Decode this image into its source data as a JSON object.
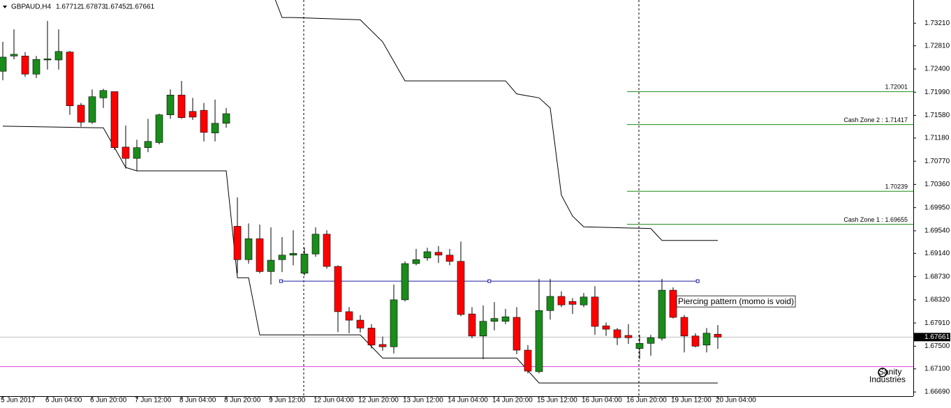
{
  "chart_data": {
    "type": "candlestick",
    "title": "GBPAUD,H4",
    "up_color": "#1a8c1a",
    "down_color": "#ff0000",
    "ylim": [
      1.66617,
      1.7362
    ],
    "yticks": [
      {
        "value": 1.7321,
        "label": "1.73210"
      },
      {
        "value": 1.7281,
        "label": "1.72810"
      },
      {
        "value": 1.724,
        "label": "1.72400"
      },
      {
        "value": 1.7199,
        "label": "1.71990"
      },
      {
        "value": 1.7158,
        "label": "1.71580"
      },
      {
        "value": 1.7118,
        "label": "1.71180"
      },
      {
        "value": 1.7077,
        "label": "1.70770"
      },
      {
        "value": 1.7036,
        "label": "1.70360"
      },
      {
        "value": 1.6995,
        "label": "1.69950"
      },
      {
        "value": 1.6954,
        "label": "1.69540"
      },
      {
        "value": 1.6914,
        "label": "1.69140"
      },
      {
        "value": 1.6873,
        "label": "1.68730"
      },
      {
        "value": 1.6832,
        "label": "1.68320"
      },
      {
        "value": 1.6791,
        "label": "1.67910"
      },
      {
        "value": 1.675,
        "label": "1.67500"
      },
      {
        "value": 1.671,
        "label": "1.67100"
      },
      {
        "value": 1.6669,
        "label": "1.66690"
      }
    ],
    "xticks": [
      {
        "value": 0,
        "label": "5 Jun 2017"
      },
      {
        "value": 4,
        "label": "6 Jun 04:00"
      },
      {
        "value": 8,
        "label": "6 Jun 20:00"
      },
      {
        "value": 12,
        "label": "7 Jun 12:00"
      },
      {
        "value": 16,
        "label": "8 Jun 04:00"
      },
      {
        "value": 20,
        "label": "8 Jun 20:00"
      },
      {
        "value": 24,
        "label": "9 Jun 12:00"
      },
      {
        "value": 28,
        "label": "12 Jun 04:00"
      },
      {
        "value": 32,
        "label": "12 Jun 20:00"
      },
      {
        "value": 36,
        "label": "13 Jun 12:00"
      },
      {
        "value": 40,
        "label": "14 Jun 04:00"
      },
      {
        "value": 44,
        "label": "14 Jun 20:00"
      },
      {
        "value": 48,
        "label": "15 Jun 12:00"
      },
      {
        "value": 52,
        "label": "16 Jun 04:00"
      },
      {
        "value": 56,
        "label": "16 Jun 20:00"
      },
      {
        "value": 60,
        "label": "19 Jun 12:00"
      },
      {
        "value": 64,
        "label": "20 Jun 04:00"
      }
    ],
    "open": [
      1.7236,
      1.7263,
      1.7263,
      1.7231,
      1.7256,
      1.7256,
      1.727,
      1.7176,
      1.7146,
      1.7189,
      1.72,
      1.7102,
      1.7082,
      1.7101,
      1.711,
      1.7159,
      1.7194,
      1.7165,
      1.7167,
      1.7127,
      1.7144,
      1.6962,
      1.6903,
      1.694,
      1.6882,
      1.6903,
      1.6911,
      1.6879,
      1.6913,
      1.6948,
      1.6891,
      1.6811,
      1.6796,
      1.6782,
      1.6753,
      1.6749,
      1.6832,
      1.6896,
      1.6906,
      1.6916,
      1.6911,
      1.69,
      1.6807,
      1.6768,
      1.6794,
      1.6794,
      1.6801,
      1.6743,
      1.6705,
      1.6813,
      1.6838,
      1.6829,
      1.6823,
      1.6837,
      1.6786,
      1.6779,
      1.6769,
      1.6746,
      1.6755,
      1.6764,
      1.6849,
      1.6801,
      1.6768,
      1.6752,
      1.67712
    ],
    "high": [
      1.7288,
      1.731,
      1.727,
      1.7263,
      1.7325,
      1.731,
      1.7272,
      1.718,
      1.7204,
      1.7205,
      1.72,
      1.714,
      1.7115,
      1.7152,
      1.7161,
      1.7204,
      1.7219,
      1.7189,
      1.718,
      1.7186,
      1.7171,
      1.7013,
      1.6967,
      1.6965,
      1.696,
      1.6943,
      1.6955,
      1.6924,
      1.696,
      1.6955,
      1.6893,
      1.6819,
      1.6805,
      1.6789,
      1.6767,
      1.6859,
      1.69,
      1.6922,
      1.6924,
      1.6927,
      1.6922,
      1.6935,
      1.6819,
      1.6822,
      1.6828,
      1.6816,
      1.6819,
      1.6752,
      1.6869,
      1.6869,
      1.6847,
      1.6835,
      1.6844,
      1.6856,
      1.6792,
      1.6782,
      1.6789,
      1.677,
      1.677,
      1.6869,
      1.6854,
      1.6805,
      1.6773,
      1.6782,
      1.67873
    ],
    "low": [
      1.722,
      1.7257,
      1.7226,
      1.7224,
      1.7239,
      1.7239,
      1.7159,
      1.7138,
      1.7143,
      1.7171,
      1.7097,
      1.7064,
      1.706,
      1.7093,
      1.7107,
      1.7152,
      1.7152,
      1.715,
      1.7112,
      1.7112,
      1.7136,
      1.6879,
      1.6896,
      1.6879,
      1.6859,
      1.6881,
      1.6893,
      1.6875,
      1.6908,
      1.6887,
      1.6775,
      1.6773,
      1.6774,
      1.6746,
      1.6742,
      1.6737,
      1.6829,
      1.6893,
      1.6901,
      1.6897,
      1.6893,
      1.6803,
      1.6764,
      1.6727,
      1.6778,
      1.6789,
      1.6736,
      1.6702,
      1.6702,
      1.6797,
      1.6819,
      1.6807,
      1.6819,
      1.677,
      1.6768,
      1.6752,
      1.6754,
      1.6727,
      1.6733,
      1.676,
      1.6799,
      1.6739,
      1.6748,
      1.6739,
      1.67452
    ],
    "close": [
      1.7261,
      1.7266,
      1.7231,
      1.7257,
      1.7258,
      1.7271,
      1.7175,
      1.7146,
      1.7191,
      1.7202,
      1.7101,
      1.7082,
      1.7101,
      1.7112,
      1.7159,
      1.7194,
      1.7154,
      1.7155,
      1.7128,
      1.7144,
      1.7161,
      1.6903,
      1.694,
      1.6882,
      1.6902,
      1.6911,
      1.6914,
      1.6913,
      1.6948,
      1.6891,
      1.6811,
      1.6796,
      1.6782,
      1.6752,
      1.6749,
      1.6832,
      1.6896,
      1.6903,
      1.6917,
      1.6911,
      1.69,
      1.6806,
      1.6768,
      1.6794,
      1.6799,
      1.6802,
      1.6743,
      1.6706,
      1.6813,
      1.6838,
      1.6823,
      1.6824,
      1.6837,
      1.6785,
      1.678,
      1.6765,
      1.6765,
      1.6755,
      1.6765,
      1.6849,
      1.6801,
      1.6768,
      1.675,
      1.6773,
      1.67661
    ],
    "lines": [
      {
        "color": "#000000",
        "x": [
          0,
          9,
          11,
          12,
          20,
          21,
          22,
          23,
          32,
          34,
          46,
          48,
          64
        ],
        "values": [
          1.7139,
          1.7136,
          1.7066,
          1.706,
          1.706,
          1.6871,
          1.6871,
          1.677,
          1.677,
          1.6729,
          1.6729,
          1.6685,
          1.6685
        ]
      },
      {
        "color": "#000000",
        "x": [
          24.4,
          25,
          26,
          32,
          34,
          36,
          45,
          46,
          48,
          49,
          50,
          51,
          52,
          58,
          59,
          64
        ],
        "values": [
          1.7362,
          1.7331,
          1.7331,
          1.7327,
          1.7288,
          1.7219,
          1.7219,
          1.7196,
          1.7189,
          1.7171,
          1.7017,
          1.698,
          1.6961,
          1.6958,
          1.6937,
          1.6937
        ]
      }
    ],
    "trendline": {
      "color": "#1c1c9c",
      "x": [
        24.9,
        62.2
      ],
      "values": [
        1.6865,
        1.6865
      ]
    },
    "hline": {
      "color": "#e040e0",
      "value": 1.6714
    },
    "price_line_color": "#c0c0c0",
    "level_color": "#1a8c1a",
    "levels": [
      1.72001,
      {
        "value": 1.71417,
        "label": "Cash Zone 2 : 1.71417"
      },
      1.70239,
      {
        "value": 1.69655,
        "label": "Cash Zone 1 : 1.69655"
      }
    ],
    "annotation": "Piercing pattern (momo is void)",
    "watermark": [
      "Sanity",
      "Industries"
    ]
  }
}
